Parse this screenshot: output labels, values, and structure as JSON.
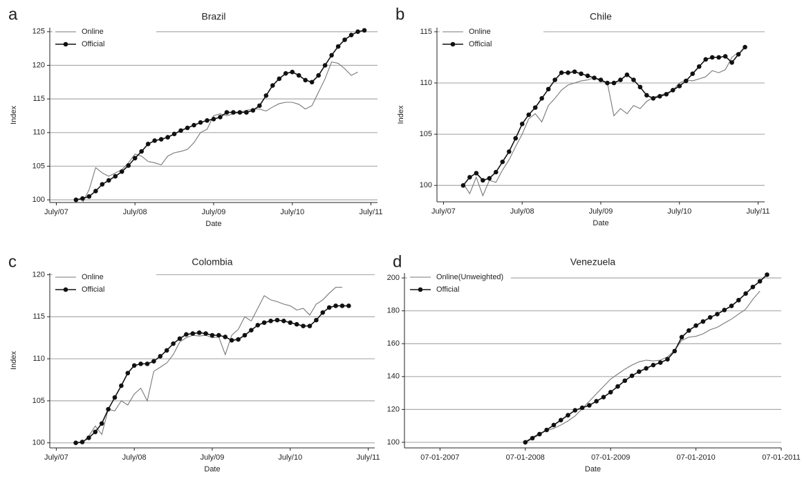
{
  "chart_data": [
    {
      "type": "line",
      "panel": "a",
      "title": "Brazil",
      "xlabel": "Date",
      "ylabel": "Index",
      "grid": true,
      "legend": "top-left",
      "x": [
        "2007-10",
        "2007-11",
        "2007-12",
        "2008-01",
        "2008-02",
        "2008-03",
        "2008-04",
        "2008-05",
        "2008-06",
        "2008-07",
        "2008-08",
        "2008-09",
        "2008-10",
        "2008-11",
        "2008-12",
        "2009-01",
        "2009-02",
        "2009-03",
        "2009-04",
        "2009-05",
        "2009-06",
        "2009-07",
        "2009-08",
        "2009-09",
        "2009-10",
        "2009-11",
        "2009-12",
        "2010-01",
        "2010-02",
        "2010-03",
        "2010-04",
        "2010-05",
        "2010-06",
        "2010-07",
        "2010-08",
        "2010-09",
        "2010-10",
        "2010-11",
        "2010-12",
        "2011-01",
        "2011-02",
        "2011-03",
        "2011-04",
        "2011-05",
        "2011-06"
      ],
      "xlim": [
        "2007-06",
        "2011-08"
      ],
      "xticks": [
        {
          "value": "2007-07",
          "label": "July/07"
        },
        {
          "value": "2008-07",
          "label": "July/08"
        },
        {
          "value": "2009-07",
          "label": "July/09"
        },
        {
          "value": "2010-07",
          "label": "July/10"
        },
        {
          "value": "2011-07",
          "label": "July/11"
        }
      ],
      "ylim": [
        99.6,
        125.6
      ],
      "yticks": [
        100,
        105,
        110,
        115,
        120,
        125
      ],
      "series": [
        {
          "name": "Online",
          "color": "#777777",
          "values": [
            null,
            99.6,
            101.5,
            104.8,
            104.0,
            103.5,
            104.0,
            104.5,
            105.5,
            106.8,
            106.5,
            105.7,
            105.5,
            105.2,
            106.5,
            107.0,
            107.2,
            107.5,
            108.5,
            110.0,
            110.5,
            112.5,
            112.8,
            112.5,
            112.8,
            113.0,
            113.3,
            113.5,
            113.5,
            113.2,
            113.8,
            114.3,
            114.5,
            114.5,
            114.2,
            113.5,
            114.0,
            116.0,
            118.0,
            120.5,
            120.3,
            119.5,
            118.5,
            119.0,
            null
          ]
        },
        {
          "name": "Official",
          "color": "#111111",
          "marker": "circle",
          "values": [
            100.0,
            100.2,
            100.5,
            101.3,
            102.3,
            102.9,
            103.5,
            104.2,
            105.1,
            106.2,
            107.2,
            108.3,
            108.8,
            109.0,
            109.3,
            109.8,
            110.3,
            110.7,
            111.1,
            111.5,
            111.8,
            112.0,
            112.3,
            113.0,
            113.0,
            113.0,
            113.0,
            113.3,
            114.0,
            115.5,
            117.0,
            118.0,
            118.8,
            119.0,
            118.5,
            117.8,
            117.5,
            118.5,
            120.0,
            121.5,
            122.8,
            123.8,
            124.5,
            125.0,
            125.2
          ]
        }
      ]
    },
    {
      "type": "line",
      "panel": "b",
      "title": "Chile",
      "xlabel": "Date",
      "ylabel": "Index",
      "grid": true,
      "legend": "top-left",
      "x": [
        "2007-10",
        "2007-11",
        "2007-12",
        "2008-01",
        "2008-02",
        "2008-03",
        "2008-04",
        "2008-05",
        "2008-06",
        "2008-07",
        "2008-08",
        "2008-09",
        "2008-10",
        "2008-11",
        "2008-12",
        "2009-01",
        "2009-02",
        "2009-03",
        "2009-04",
        "2009-05",
        "2009-06",
        "2009-07",
        "2009-08",
        "2009-09",
        "2009-10",
        "2009-11",
        "2009-12",
        "2010-01",
        "2010-02",
        "2010-03",
        "2010-04",
        "2010-05",
        "2010-06",
        "2010-07",
        "2010-08",
        "2010-09",
        "2010-10",
        "2010-11",
        "2010-12",
        "2011-01",
        "2011-02",
        "2011-03",
        "2011-04",
        "2011-05",
        "2011-06"
      ],
      "xlim": [
        "2007-06",
        "2011-08"
      ],
      "xticks": [
        {
          "value": "2007-07",
          "label": "July/07"
        },
        {
          "value": "2008-07",
          "label": "July/08"
        },
        {
          "value": "2009-07",
          "label": "July/09"
        },
        {
          "value": "2010-07",
          "label": "July/10"
        },
        {
          "value": "2011-07",
          "label": "July/11"
        }
      ],
      "ylim": [
        98.4,
        115.4
      ],
      "yticks": [
        100,
        105,
        110,
        115
      ],
      "series": [
        {
          "name": "Online",
          "color": "#777777",
          "values": [
            100.2,
            99.2,
            100.8,
            99.0,
            100.5,
            100.3,
            101.5,
            102.5,
            103.8,
            105.0,
            106.5,
            107.0,
            106.2,
            107.8,
            108.5,
            109.3,
            109.8,
            110.0,
            110.2,
            110.3,
            110.5,
            110.2,
            110.0,
            106.8,
            107.5,
            107.0,
            107.8,
            107.5,
            108.2,
            108.6,
            108.8,
            109.0,
            109.3,
            110.0,
            110.3,
            110.2,
            110.4,
            110.6,
            111.2,
            111.0,
            111.3,
            112.5,
            113.0,
            null,
            null
          ]
        },
        {
          "name": "Official",
          "color": "#111111",
          "marker": "circle",
          "values": [
            100.0,
            100.8,
            101.2,
            100.5,
            100.7,
            101.3,
            102.3,
            103.3,
            104.6,
            106.0,
            106.9,
            107.6,
            108.5,
            109.4,
            110.3,
            111.0,
            111.0,
            111.1,
            110.9,
            110.7,
            110.5,
            110.3,
            110.0,
            110.0,
            110.3,
            110.8,
            110.3,
            109.6,
            108.8,
            108.5,
            108.7,
            108.9,
            109.3,
            109.7,
            110.2,
            110.9,
            111.6,
            112.3,
            112.5,
            112.5,
            112.6,
            112.0,
            112.8,
            113.5,
            null
          ]
        }
      ]
    },
    {
      "type": "line",
      "panel": "c",
      "title": "Colombia",
      "xlabel": "Date",
      "ylabel": "Index",
      "grid": true,
      "legend": "top-left",
      "x": [
        "2007-10",
        "2007-11",
        "2007-12",
        "2008-01",
        "2008-02",
        "2008-03",
        "2008-04",
        "2008-05",
        "2008-06",
        "2008-07",
        "2008-08",
        "2008-09",
        "2008-10",
        "2008-11",
        "2008-12",
        "2009-01",
        "2009-02",
        "2009-03",
        "2009-04",
        "2009-05",
        "2009-06",
        "2009-07",
        "2009-08",
        "2009-09",
        "2009-10",
        "2009-11",
        "2009-12",
        "2010-01",
        "2010-02",
        "2010-03",
        "2010-04",
        "2010-05",
        "2010-06",
        "2010-07",
        "2010-08",
        "2010-09",
        "2010-10",
        "2010-11",
        "2010-12",
        "2011-01",
        "2011-02",
        "2011-03",
        "2011-04",
        "2011-05",
        "2011-06"
      ],
      "xlim": [
        "2007-06",
        "2011-08"
      ],
      "xticks": [
        {
          "value": "2007-07",
          "label": "July/07"
        },
        {
          "value": "2008-07",
          "label": "July/08"
        },
        {
          "value": "2009-07",
          "label": "July/09"
        },
        {
          "value": "2010-07",
          "label": "July/10"
        },
        {
          "value": "2011-07",
          "label": "July/11"
        }
      ],
      "ylim": [
        99.4,
        120.2
      ],
      "yticks": [
        100,
        105,
        110,
        115,
        120
      ],
      "series": [
        {
          "name": "Online",
          "color": "#777777",
          "values": [
            null,
            100.0,
            100.8,
            102.0,
            101.0,
            104.0,
            103.8,
            105.0,
            104.5,
            105.8,
            106.5,
            105.0,
            108.5,
            109.0,
            109.5,
            110.5,
            112.0,
            112.5,
            112.8,
            112.7,
            112.8,
            112.5,
            112.6,
            110.5,
            112.8,
            113.5,
            115.0,
            114.5,
            116.0,
            117.5,
            117.0,
            116.8,
            116.5,
            116.3,
            115.8,
            116.0,
            115.2,
            116.5,
            117.0,
            117.8,
            118.5,
            118.5,
            null,
            null,
            null
          ]
        },
        {
          "name": "Official",
          "color": "#111111",
          "marker": "circle",
          "values": [
            100.0,
            100.1,
            100.6,
            101.3,
            102.3,
            104.0,
            105.4,
            106.8,
            108.3,
            109.2,
            109.4,
            109.4,
            109.7,
            110.3,
            111.0,
            111.8,
            112.4,
            112.9,
            113.0,
            113.1,
            113.0,
            112.8,
            112.8,
            112.6,
            112.2,
            112.3,
            112.8,
            113.4,
            114.0,
            114.3,
            114.5,
            114.6,
            114.5,
            114.3,
            114.1,
            113.9,
            113.9,
            114.6,
            115.5,
            116.1,
            116.3,
            116.3,
            116.3,
            null,
            null
          ]
        }
      ]
    },
    {
      "type": "line",
      "panel": "d",
      "title": "Venezuela",
      "xlabel": "Date",
      "grid": true,
      "legend": "top-left",
      "x": [
        "2008-07",
        "2008-08",
        "2008-09",
        "2008-10",
        "2008-11",
        "2008-12",
        "2009-01",
        "2009-02",
        "2009-03",
        "2009-04",
        "2009-05",
        "2009-06",
        "2009-07",
        "2009-08",
        "2009-09",
        "2009-10",
        "2009-11",
        "2009-12",
        "2010-01",
        "2010-02",
        "2010-03",
        "2010-04",
        "2010-05",
        "2010-06",
        "2010-07",
        "2010-08",
        "2010-09",
        "2010-10",
        "2010-11",
        "2010-12",
        "2011-01",
        "2011-02",
        "2011-03",
        "2011-04",
        "2011-05"
      ],
      "xlim": [
        "2007-02",
        "2011-07"
      ],
      "xticks": [
        {
          "value": "2007-07",
          "label": "07-01-2007"
        },
        {
          "value": "2008-07",
          "label": "07-01-2008"
        },
        {
          "value": "2009-07",
          "label": "07-01-2009"
        },
        {
          "value": "2010-07",
          "label": "07-01-2010"
        },
        {
          "value": "2011-07",
          "label": "07-01-2011"
        }
      ],
      "ylim": [
        96.6,
        203
      ],
      "yticks": [
        100,
        120,
        140,
        160,
        180,
        200
      ],
      "series": [
        {
          "name": "Online(Unweighted)",
          "color": "#777777",
          "values": [
            100.5,
            103,
            105.5,
            107,
            108.5,
            110.5,
            113,
            116,
            120.5,
            125,
            129.5,
            134,
            138.5,
            141.5,
            144.5,
            147,
            149,
            150,
            149.5,
            150,
            152,
            156,
            162,
            164,
            164.5,
            166,
            168.5,
            170,
            172.5,
            175,
            178,
            181,
            187,
            192,
            null
          ]
        },
        {
          "name": "Official",
          "color": "#111111",
          "marker": "circle",
          "values": [
            100,
            102.5,
            105,
            107.5,
            110.5,
            113.5,
            116.5,
            119.5,
            121,
            122.5,
            125,
            127.5,
            130.5,
            134,
            137.5,
            140.5,
            143,
            145,
            147,
            148.5,
            150.5,
            155.5,
            164,
            168,
            171,
            173.5,
            176,
            178,
            180.5,
            183,
            186.5,
            190.5,
            194.5,
            198,
            202
          ]
        }
      ]
    }
  ]
}
